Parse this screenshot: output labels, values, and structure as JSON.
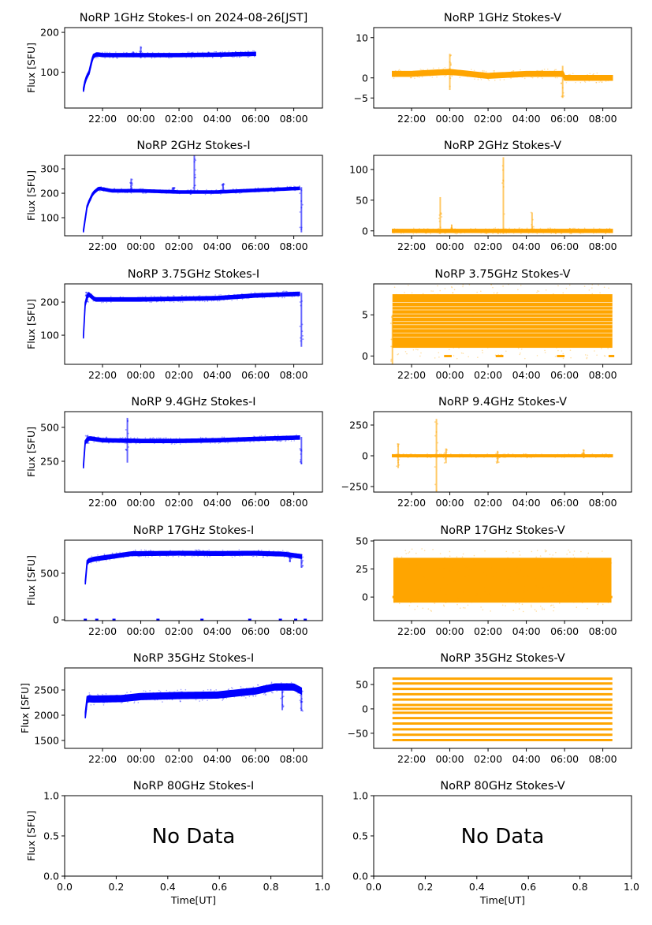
{
  "chart_data": [
    {
      "id": "p1",
      "type": "scatter",
      "title": "NoRP 1GHz Stokes-I on 2024-08-26[JST]",
      "ylabel": "Flux [SFU]",
      "xlabel": "",
      "color": "#0000ff",
      "xlim": [
        20.02,
        33.5
      ],
      "ylim": [
        10,
        212
      ],
      "xticks": [
        {
          "v": 22,
          "label": "22:00"
        },
        {
          "v": 24,
          "label": "00:00"
        },
        {
          "v": 26,
          "label": "02:00"
        },
        {
          "v": 28,
          "label": "04:00"
        },
        {
          "v": 30,
          "label": "06:00"
        },
        {
          "v": 32,
          "label": "08:00"
        }
      ],
      "yticks": [
        {
          "v": 100,
          "label": "100"
        },
        {
          "v": 200,
          "label": "200"
        }
      ],
      "series": {
        "t": [
          21.0,
          21.1,
          21.3,
          21.5,
          21.7,
          22,
          24,
          26,
          28,
          30.0
        ],
        "v": [
          55,
          80,
          100,
          140,
          145,
          143,
          143,
          143,
          144,
          146
        ],
        "noise": 4
      },
      "spikes": [
        [
          24.0,
          165,
          135
        ],
        [
          23.6,
          152,
          140
        ],
        [
          29.7,
          150,
          140
        ]
      ]
    },
    {
      "id": "p2",
      "type": "scatter",
      "title": "NoRP 1GHz Stokes-V",
      "ylabel": "",
      "xlabel": "",
      "color": "#ffa500",
      "xlim": [
        20.02,
        33.5
      ],
      "ylim": [
        -7.5,
        12.5
      ],
      "xticks": [
        {
          "v": 22,
          "label": "22:00"
        },
        {
          "v": 24,
          "label": "00:00"
        },
        {
          "v": 26,
          "label": "02:00"
        },
        {
          "v": 28,
          "label": "04:00"
        },
        {
          "v": 30,
          "label": "06:00"
        },
        {
          "v": 32,
          "label": "08:00"
        }
      ],
      "yticks": [
        {
          "v": -5,
          "label": "−5"
        },
        {
          "v": 0,
          "label": "0"
        },
        {
          "v": 10,
          "label": "10"
        }
      ],
      "series": {
        "t": [
          21,
          22,
          24,
          26,
          28,
          29.95,
          30.0,
          32.5
        ],
        "v": [
          1,
          1,
          1.5,
          0.5,
          1,
          1,
          0,
          0
        ],
        "noise": 0.6
      },
      "spikes": [
        [
          24.0,
          6,
          -3
        ],
        [
          29.9,
          3,
          -5
        ]
      ]
    },
    {
      "id": "p3",
      "type": "scatter",
      "title": "NoRP 2GHz Stokes-I",
      "ylabel": "Flux [SFU]",
      "xlabel": "",
      "color": "#0000ff",
      "xlim": [
        20.02,
        33.5
      ],
      "ylim": [
        26,
        355
      ],
      "xticks": [
        {
          "v": 22,
          "label": "22:00"
        },
        {
          "v": 24,
          "label": "00:00"
        },
        {
          "v": 26,
          "label": "02:00"
        },
        {
          "v": 28,
          "label": "04:00"
        },
        {
          "v": 30,
          "label": "06:00"
        },
        {
          "v": 32,
          "label": "08:00"
        }
      ],
      "yticks": [
        {
          "v": 100,
          "label": "100"
        },
        {
          "v": 200,
          "label": "200"
        },
        {
          "v": 300,
          "label": "300"
        }
      ],
      "series": {
        "t": [
          21.0,
          21.2,
          21.5,
          21.8,
          22.5,
          24,
          26,
          28,
          30,
          32.3
        ],
        "v": [
          45,
          150,
          200,
          220,
          210,
          210,
          205,
          205,
          212,
          220
        ],
        "noise": 5
      },
      "spikes": [
        [
          23.5,
          260,
          210
        ],
        [
          25.7,
          225,
          210
        ],
        [
          26.8,
          355,
          210
        ],
        [
          28.3,
          240,
          205
        ],
        [
          32.4,
          225,
          40
        ]
      ]
    },
    {
      "id": "p4",
      "type": "scatter",
      "title": "NoRP 2GHz Stokes-V",
      "ylabel": "",
      "xlabel": "",
      "color": "#ffa500",
      "xlim": [
        20.02,
        33.5
      ],
      "ylim": [
        -8,
        123
      ],
      "xticks": [
        {
          "v": 22,
          "label": "22:00"
        },
        {
          "v": 24,
          "label": "00:00"
        },
        {
          "v": 26,
          "label": "02:00"
        },
        {
          "v": 28,
          "label": "04:00"
        },
        {
          "v": 30,
          "label": "06:00"
        },
        {
          "v": 32,
          "label": "08:00"
        }
      ],
      "yticks": [
        {
          "v": 0,
          "label": "0"
        },
        {
          "v": 50,
          "label": "50"
        },
        {
          "v": 100,
          "label": "100"
        }
      ],
      "series": {
        "t": [
          21,
          32.5
        ],
        "v": [
          0,
          0
        ],
        "noise": 2.5
      },
      "spikes": [
        [
          23.5,
          55,
          -5
        ],
        [
          24.1,
          10,
          -3
        ],
        [
          26.8,
          120,
          -5
        ],
        [
          28.3,
          30,
          -3
        ]
      ]
    },
    {
      "id": "p5",
      "type": "scatter",
      "title": "NoRP 3.75GHz Stokes-I",
      "ylabel": "Flux [SFU]",
      "xlabel": "",
      "color": "#0000ff",
      "xlim": [
        20.02,
        33.5
      ],
      "ylim": [
        12,
        255
      ],
      "xticks": [
        {
          "v": 22,
          "label": "22:00"
        },
        {
          "v": 24,
          "label": "00:00"
        },
        {
          "v": 26,
          "label": "02:00"
        },
        {
          "v": 28,
          "label": "04:00"
        },
        {
          "v": 30,
          "label": "06:00"
        },
        {
          "v": 32,
          "label": "08:00"
        }
      ],
      "yticks": [
        {
          "v": 100,
          "label": "100"
        },
        {
          "v": 200,
          "label": "200"
        }
      ],
      "series": {
        "t": [
          21.0,
          21.1,
          21.25,
          21.6,
          24,
          26,
          28,
          30,
          32.3
        ],
        "v": [
          95,
          200,
          225,
          208,
          208,
          210,
          212,
          220,
          225
        ],
        "noise": 5
      },
      "spikes": [
        [
          21.2,
          230,
          200
        ],
        [
          32.4,
          228,
          65
        ]
      ]
    },
    {
      "id": "p6",
      "type": "scatter",
      "title": "NoRP 3.75GHz Stokes-V",
      "ylabel": "",
      "xlabel": "",
      "color": "#ffa500",
      "xlim": [
        20.02,
        33.5
      ],
      "ylim": [
        -1,
        8.75
      ],
      "xticks": [
        {
          "v": 22,
          "label": "22:00"
        },
        {
          "v": 24,
          "label": "00:00"
        },
        {
          "v": 26,
          "label": "02:00"
        },
        {
          "v": 28,
          "label": "04:00"
        },
        {
          "v": 30,
          "label": "06:00"
        },
        {
          "v": 32,
          "label": "08:00"
        }
      ],
      "yticks": [
        {
          "v": 0,
          "label": "0"
        },
        {
          "v": 5,
          "label": "5"
        }
      ],
      "band": {
        "t": [
          21.0,
          32.5
        ],
        "low": 1.0,
        "high": 7.5
      },
      "stripes": [
        2.3,
        2.8,
        3.3,
        3.8,
        4.2,
        4.7,
        5.1,
        5.6,
        6.0,
        6.5
      ],
      "zero_segments": [
        [
          23.7,
          24.1
        ],
        [
          26.4,
          26.8
        ],
        [
          29.6,
          30.0
        ],
        [
          32.3,
          32.6
        ]
      ],
      "spikes": [
        [
          21.0,
          5,
          -1
        ]
      ]
    },
    {
      "id": "p7",
      "type": "scatter",
      "title": "NoRP 9.4GHz Stokes-I",
      "ylabel": "Flux [SFU]",
      "xlabel": "",
      "color": "#0000ff",
      "xlim": [
        20.02,
        33.5
      ],
      "ylim": [
        23,
        616
      ],
      "xticks": [
        {
          "v": 22,
          "label": "22:00"
        },
        {
          "v": 24,
          "label": "00:00"
        },
        {
          "v": 26,
          "label": "02:00"
        },
        {
          "v": 28,
          "label": "04:00"
        },
        {
          "v": 30,
          "label": "06:00"
        },
        {
          "v": 32,
          "label": "08:00"
        }
      ],
      "yticks": [
        {
          "v": 250,
          "label": "250"
        },
        {
          "v": 500,
          "label": "500"
        }
      ],
      "series": {
        "t": [
          21.0,
          21.1,
          21.3,
          22,
          24,
          26,
          28,
          30,
          32.3
        ],
        "v": [
          210,
          400,
          420,
          405,
          400,
          400,
          405,
          415,
          425
        ],
        "noise": 12
      },
      "spikes": [
        [
          21.2,
          440,
          380
        ],
        [
          23.3,
          570,
          240
        ],
        [
          32.4,
          430,
          230
        ]
      ]
    },
    {
      "id": "p8",
      "type": "scatter",
      "title": "NoRP 9.4GHz Stokes-V",
      "ylabel": "",
      "xlabel": "",
      "color": "#ffa500",
      "xlim": [
        20.02,
        33.5
      ],
      "ylim": [
        -295,
        359
      ],
      "xticks": [
        {
          "v": 22,
          "label": "22:00"
        },
        {
          "v": 24,
          "label": "00:00"
        },
        {
          "v": 26,
          "label": "02:00"
        },
        {
          "v": 28,
          "label": "04:00"
        },
        {
          "v": 30,
          "label": "06:00"
        },
        {
          "v": 32,
          "label": "08:00"
        }
      ],
      "yticks": [
        {
          "v": -250,
          "label": "−250"
        },
        {
          "v": 0,
          "label": "0"
        },
        {
          "v": 250,
          "label": "250"
        }
      ],
      "series": {
        "t": [
          21,
          32.5
        ],
        "v": [
          0,
          0
        ],
        "noise": 8
      },
      "spikes": [
        [
          21.3,
          100,
          -100
        ],
        [
          23.3,
          300,
          -290
        ],
        [
          23.8,
          60,
          -60
        ],
        [
          26.5,
          40,
          -60
        ],
        [
          31.0,
          50,
          -20
        ]
      ]
    },
    {
      "id": "p9",
      "type": "scatter",
      "title": "NoRP 17GHz Stokes-I",
      "ylabel": "Flux [SFU]",
      "xlabel": "",
      "color": "#0000ff",
      "xlim": [
        20.02,
        33.5
      ],
      "ylim": [
        -8,
        855
      ],
      "xticks": [
        {
          "v": 22,
          "label": "22:00"
        },
        {
          "v": 24,
          "label": "00:00"
        },
        {
          "v": 26,
          "label": "02:00"
        },
        {
          "v": 28,
          "label": "04:00"
        },
        {
          "v": 30,
          "label": "06:00"
        },
        {
          "v": 32,
          "label": "08:00"
        }
      ],
      "yticks": [
        {
          "v": 0,
          "label": "0"
        },
        {
          "v": 500,
          "label": "500"
        }
      ],
      "series": {
        "t": [
          21.1,
          21.2,
          21.5,
          22.5,
          23.5,
          26,
          28,
          30,
          31.5,
          32.4
        ],
        "v": [
          400,
          630,
          650,
          680,
          710,
          715,
          712,
          715,
          705,
          680
        ],
        "noise": 20
      },
      "zero_points": [
        21.1,
        21.7,
        22.6,
        24.9,
        27.2,
        29.7,
        31.3,
        32.1,
        32.6
      ],
      "spikes": [
        [
          31.8,
          700,
          620
        ],
        [
          32.4,
          700,
          560
        ]
      ]
    },
    {
      "id": "p10",
      "type": "scatter",
      "title": "NoRP 17GHz Stokes-V",
      "ylabel": "",
      "xlabel": "",
      "color": "#ffa500",
      "xlim": [
        20.02,
        33.5
      ],
      "ylim": [
        -21,
        50.7
      ],
      "xticks": [
        {
          "v": 22,
          "label": "22:00"
        },
        {
          "v": 24,
          "label": "00:00"
        },
        {
          "v": 26,
          "label": "02:00"
        },
        {
          "v": 28,
          "label": "04:00"
        },
        {
          "v": 30,
          "label": "06:00"
        },
        {
          "v": 32,
          "label": "08:00"
        }
      ],
      "yticks": [
        {
          "v": 0,
          "label": "0"
        },
        {
          "v": 25,
          "label": "25"
        },
        {
          "v": 50,
          "label": "50"
        }
      ],
      "band": {
        "t": [
          21.05,
          32.45
        ],
        "low": -5,
        "high": 35
      },
      "zero_segments": [
        [
          21.0,
          21.1
        ],
        [
          32.4,
          32.5
        ]
      ],
      "spikes": []
    },
    {
      "id": "p11",
      "type": "scatter",
      "title": "NoRP 35GHz Stokes-I",
      "ylabel": "Flux [SFU]",
      "xlabel": "",
      "color": "#0000ff",
      "xlim": [
        20.02,
        33.5
      ],
      "ylim": [
        1344,
        2937
      ],
      "xticks": [
        {
          "v": 22,
          "label": "22:00"
        },
        {
          "v": 24,
          "label": "00:00"
        },
        {
          "v": 26,
          "label": "02:00"
        },
        {
          "v": 28,
          "label": "04:00"
        },
        {
          "v": 30,
          "label": "06:00"
        },
        {
          "v": 32,
          "label": "08:00"
        }
      ],
      "yticks": [
        {
          "v": 1500,
          "label": "1500"
        },
        {
          "v": 2000,
          "label": "2000"
        },
        {
          "v": 2500,
          "label": "2500"
        }
      ],
      "series": {
        "t": [
          21.1,
          21.2,
          21.5,
          23,
          24,
          26,
          28,
          30,
          31,
          31.5,
          32.0,
          32.4
        ],
        "v": [
          2000,
          2330,
          2320,
          2330,
          2370,
          2390,
          2400,
          2480,
          2560,
          2560,
          2560,
          2480
        ],
        "noise": 60
      },
      "spikes": [
        [
          31.4,
          2560,
          2100
        ],
        [
          32.4,
          2500,
          2080
        ]
      ]
    },
    {
      "id": "p12",
      "type": "scatter",
      "title": "NoRP 35GHz Stokes-V",
      "ylabel": "",
      "xlabel": "",
      "color": "#ffa500",
      "xlim": [
        20.02,
        33.5
      ],
      "ylim": [
        -81,
        84
      ],
      "xticks": [
        {
          "v": 22,
          "label": "22:00"
        },
        {
          "v": 24,
          "label": "00:00"
        },
        {
          "v": 26,
          "label": "02:00"
        },
        {
          "v": 28,
          "label": "04:00"
        },
        {
          "v": 30,
          "label": "06:00"
        },
        {
          "v": 32,
          "label": "08:00"
        }
      ],
      "yticks": [
        {
          "v": -50,
          "label": "−50"
        },
        {
          "v": 0,
          "label": "0"
        },
        {
          "v": 50,
          "label": "50"
        }
      ],
      "stripe_span": [
        21.0,
        32.5
      ],
      "stripes": [
        -64,
        -53,
        -42,
        -30,
        -19,
        -8,
        0,
        8,
        19,
        30,
        41,
        52,
        62
      ],
      "spikes": []
    },
    {
      "id": "p13",
      "type": "scatter",
      "title": "NoRP 80GHz Stokes-I",
      "ylabel": "Flux [SFU]",
      "xlabel": "Time[UT]",
      "color": "#0000ff",
      "xlim": [
        0,
        1
      ],
      "ylim": [
        0,
        1
      ],
      "xticks": [
        {
          "v": 0,
          "label": "0.0"
        },
        {
          "v": 0.2,
          "label": "0.2"
        },
        {
          "v": 0.4,
          "label": "0.4"
        },
        {
          "v": 0.6,
          "label": "0.6"
        },
        {
          "v": 0.8,
          "label": "0.8"
        },
        {
          "v": 1,
          "label": "1.0"
        }
      ],
      "yticks": [
        {
          "v": 0,
          "label": "0.0"
        },
        {
          "v": 0.5,
          "label": "0.5"
        },
        {
          "v": 1,
          "label": "1.0"
        }
      ],
      "no_data": "No Data"
    },
    {
      "id": "p14",
      "type": "scatter",
      "title": "NoRP 80GHz Stokes-V",
      "ylabel": "",
      "xlabel": "Time[UT]",
      "color": "#ffa500",
      "xlim": [
        0,
        1
      ],
      "ylim": [
        0,
        1
      ],
      "xticks": [
        {
          "v": 0,
          "label": "0.0"
        },
        {
          "v": 0.2,
          "label": "0.2"
        },
        {
          "v": 0.4,
          "label": "0.4"
        },
        {
          "v": 0.6,
          "label": "0.6"
        },
        {
          "v": 0.8,
          "label": "0.8"
        },
        {
          "v": 1,
          "label": "1.0"
        }
      ],
      "yticks": [
        {
          "v": 0,
          "label": "0.0"
        },
        {
          "v": 0.5,
          "label": "0.5"
        },
        {
          "v": 1,
          "label": "1.0"
        }
      ],
      "no_data": "No Data"
    }
  ]
}
